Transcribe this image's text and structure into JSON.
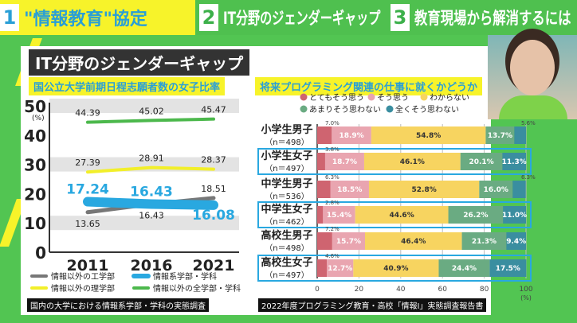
{
  "header": {
    "tabs": [
      {
        "num": "1",
        "label": "\"情報教育\"協定"
      },
      {
        "num": "2",
        "label": "IT分野のジェンダーギャップ"
      },
      {
        "num": "3",
        "label": "教育現場から解消するには"
      }
    ]
  },
  "panel_title": "IT分野のジェンダーギャップ",
  "chart_data": [
    {
      "type": "line",
      "title": "国公立大学前期日程志願者数の女子比率",
      "ylabel": "(%)",
      "ylim": [
        0,
        50
      ],
      "yticks": [
        0,
        10,
        20,
        30,
        40,
        50
      ],
      "categories": [
        "2011",
        "2016",
        "2021"
      ],
      "grid": "horizontal bands",
      "legend": "bottom",
      "series": [
        {
          "name": "情報以外の工学部",
          "color": "#777777",
          "values": [
            13.65,
            16.43,
            18.51
          ],
          "labels": [
            "13.65",
            "16.43",
            "18.51"
          ]
        },
        {
          "name": "情報系学部・学科",
          "color": "#29a8e0",
          "values": [
            17.24,
            16.43,
            16.08
          ],
          "labels": [
            "17.24",
            "16.43",
            "16.08"
          ]
        },
        {
          "name": "情報以外の理学部",
          "color": "#f2ef2a",
          "values": [
            27.39,
            28.91,
            28.37
          ],
          "labels": [
            "27.39",
            "28.91",
            "28.37"
          ]
        },
        {
          "name": "情報以外の全学部・学科",
          "color": "#4cb84c",
          "values": [
            44.39,
            45.02,
            45.47
          ],
          "labels": [
            "44.39",
            "45.02",
            "45.47"
          ]
        }
      ],
      "source": "国内の大学における情報系学部・学科の実態調査"
    },
    {
      "type": "bar",
      "orientation": "horizontal",
      "stacked": true,
      "title": "将来プログラミング関連の仕事に就くかどうか",
      "xlim": [
        0,
        100
      ],
      "xticks": [
        "0",
        "20",
        "40",
        "60",
        "80",
        "100"
      ],
      "xunit": "(%)",
      "legend": "top",
      "series_names": [
        "とてもそう思う",
        "そう思う",
        "わからない",
        "あまりそう思わない",
        "全くそう思わない"
      ],
      "colors": [
        "#cf6470",
        "#e9a5b0",
        "#f7d460",
        "#6aab82",
        "#3a8ea0"
      ],
      "categories": [
        {
          "name": "小学生男子",
          "n": "（n＝498）",
          "values": [
            7.0,
            18.9,
            54.8,
            13.7,
            5.6
          ],
          "highlight": false
        },
        {
          "name": "小学生女子",
          "n": "（n＝497）",
          "values": [
            3.8,
            18.7,
            46.1,
            20.1,
            11.3
          ],
          "highlight": true
        },
        {
          "name": "中学生男子",
          "n": "（n＝536）",
          "values": [
            6.3,
            18.5,
            52.8,
            16.0,
            6.3
          ],
          "highlight": false
        },
        {
          "name": "中学生女子",
          "n": "（n＝462）",
          "values": [
            2.8,
            15.4,
            44.6,
            26.2,
            11.0
          ],
          "highlight": true
        },
        {
          "name": "高校生男子",
          "n": "（n＝498）",
          "values": [
            7.2,
            15.7,
            46.4,
            21.3,
            9.4
          ],
          "highlight": false
        },
        {
          "name": "高校生女子",
          "n": "（n＝497）",
          "values": [
            4.6,
            12.7,
            40.9,
            24.4,
            17.5
          ],
          "highlight": true
        }
      ],
      "highlight_color": "#29a8e0",
      "source": "2022年度プログラミング教育・高校「情報Ⅰ」実態調査報告書"
    }
  ]
}
